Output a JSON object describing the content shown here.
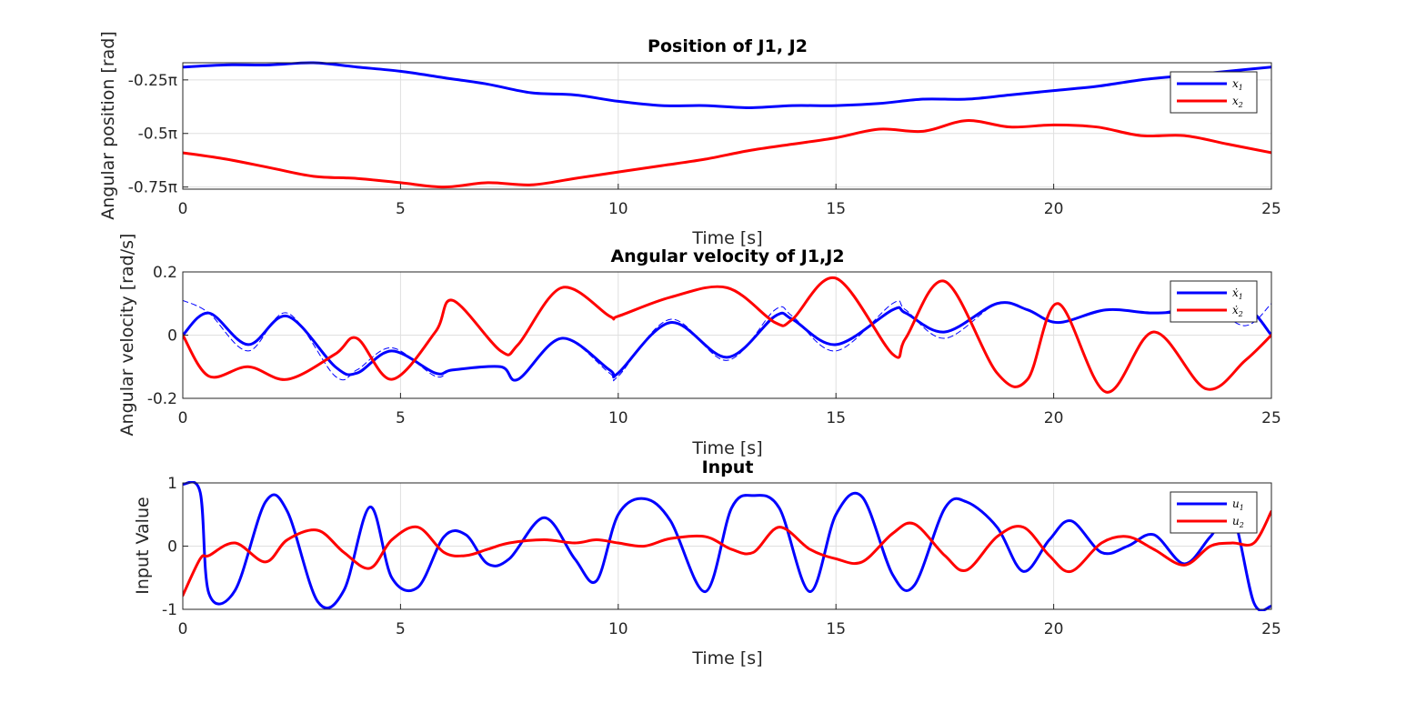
{
  "chart_data": [
    {
      "type": "line",
      "title": "Position of J1, J2",
      "xlabel": "Time [s]",
      "ylabel": "Angular position [rad]",
      "xlim": [
        0,
        25
      ],
      "ylim_pi_units": [
        -0.76,
        -0.17
      ],
      "xticks": [
        0,
        5,
        10,
        15,
        20,
        25
      ],
      "xtick_labels": [
        "0",
        "5",
        "10",
        "15",
        "20",
        "25"
      ],
      "yticks_pi_units": [
        -0.25,
        -0.5,
        -0.75
      ],
      "ytick_labels": [
        "-0.25π",
        "-0.5π",
        "-0.75π"
      ],
      "grid": true,
      "legend_position": "top-right",
      "legend": [
        {
          "main": "x",
          "sub": "1",
          "color": "#0000ff"
        },
        {
          "main": "x",
          "sub": "2",
          "color": "#ff0000"
        }
      ],
      "x": [
        0,
        1,
        2,
        3,
        4,
        5,
        6,
        7,
        8,
        9,
        10,
        11,
        12,
        13,
        14,
        15,
        16,
        17,
        18,
        19,
        20,
        21,
        22,
        23,
        24,
        25
      ],
      "series": [
        {
          "name": "x1",
          "color": "#0000ff",
          "width": 3,
          "values_pi_units": [
            -0.19,
            -0.18,
            -0.18,
            -0.17,
            -0.19,
            -0.21,
            -0.24,
            -0.27,
            -0.31,
            -0.32,
            -0.35,
            -0.37,
            -0.37,
            -0.38,
            -0.37,
            -0.37,
            -0.36,
            -0.34,
            -0.34,
            -0.32,
            -0.3,
            -0.28,
            -0.25,
            -0.23,
            -0.21,
            -0.19
          ]
        },
        {
          "name": "x2",
          "color": "#ff0000",
          "width": 3,
          "values_pi_units": [
            -0.59,
            -0.62,
            -0.66,
            -0.7,
            -0.71,
            -0.73,
            -0.75,
            -0.73,
            -0.74,
            -0.71,
            -0.68,
            -0.65,
            -0.62,
            -0.58,
            -0.55,
            -0.52,
            -0.48,
            -0.49,
            -0.44,
            -0.47,
            -0.46,
            -0.47,
            -0.51,
            -0.51,
            -0.55,
            -0.59
          ]
        }
      ]
    },
    {
      "type": "line",
      "title": "Angular velocity of J1,J2",
      "xlabel": "Time [s]",
      "ylabel": "Angular velocity [rad/s]",
      "xlim": [
        0,
        25
      ],
      "ylim": [
        -0.2,
        0.2
      ],
      "xticks": [
        0,
        5,
        10,
        15,
        20,
        25
      ],
      "xtick_labels": [
        "0",
        "5",
        "10",
        "15",
        "20",
        "25"
      ],
      "yticks": [
        0.2,
        0,
        -0.2
      ],
      "ytick_labels": [
        "0.2",
        "0",
        "-0.2"
      ],
      "grid": true,
      "legend_position": "top-right",
      "legend": [
        {
          "main": "ẋ",
          "sub": "1",
          "color": "#0000ff"
        },
        {
          "main": "ẋ",
          "sub": "2",
          "color": "#ff0000"
        }
      ],
      "x": [
        0,
        0.6,
        1.5,
        2.4,
        3.5,
        4.0,
        4.8,
        5.8,
        6.2,
        7.3,
        7.7,
        8.7,
        9.8,
        10.0,
        11.2,
        12.5,
        13.6,
        14.0,
        15.0,
        16.3,
        16.6,
        17.5,
        18.7,
        19.4,
        20.1,
        21.2,
        22.3,
        23.5,
        24.4,
        25.0
      ],
      "series": [
        {
          "name": "x1_dot",
          "color": "#0000ff",
          "width": 3,
          "values": [
            0.0,
            0.07,
            -0.03,
            0.06,
            -0.1,
            -0.12,
            -0.05,
            -0.12,
            -0.11,
            -0.1,
            -0.14,
            -0.01,
            -0.11,
            -0.12,
            0.04,
            -0.07,
            0.06,
            0.05,
            -0.03,
            0.08,
            0.07,
            0.01,
            0.1,
            0.08,
            0.04,
            0.08,
            0.07,
            0.08,
            0.09,
            0.0
          ]
        },
        {
          "name": "x1_dot_reference",
          "color": "#0000ff",
          "width": 1,
          "dashed": true,
          "values": [
            0.11,
            0.07,
            -0.05,
            0.07,
            -0.13,
            -0.11,
            -0.04,
            -0.13,
            -0.11,
            -0.1,
            -0.14,
            -0.01,
            -0.12,
            -0.13,
            0.05,
            -0.08,
            0.08,
            0.06,
            -0.05,
            0.1,
            0.08,
            -0.01,
            0.1,
            0.08,
            0.04,
            0.08,
            0.07,
            0.09,
            0.03,
            0.1
          ]
        },
        {
          "name": "x2_dot",
          "color": "#ff0000",
          "width": 3,
          "values": [
            0.0,
            -0.13,
            -0.1,
            -0.14,
            -0.06,
            -0.01,
            -0.14,
            0.01,
            0.11,
            -0.05,
            -0.03,
            0.15,
            0.06,
            0.06,
            0.12,
            0.15,
            0.04,
            0.05,
            0.18,
            -0.06,
            -0.01,
            0.17,
            -0.12,
            -0.14,
            0.1,
            -0.18,
            0.01,
            -0.17,
            -0.08,
            0.0
          ]
        }
      ]
    },
    {
      "type": "line",
      "title": "Input",
      "xlabel": "Time [s]",
      "ylabel": "Input Value",
      "xlim": [
        0,
        25
      ],
      "ylim": [
        -1,
        1
      ],
      "xticks": [
        0,
        5,
        10,
        15,
        20,
        25
      ],
      "xtick_labels": [
        "0",
        "5",
        "10",
        "15",
        "20",
        "25"
      ],
      "yticks": [
        1,
        0,
        -1
      ],
      "ytick_labels": [
        "1",
        "0",
        "-1"
      ],
      "grid": true,
      "legend_position": "top-right",
      "legend": [
        {
          "main": "u",
          "sub": "1",
          "color": "#0000ff"
        },
        {
          "main": "u",
          "sub": "2",
          "color": "#ff0000"
        }
      ],
      "x": [
        0,
        0.4,
        0.6,
        1.2,
        1.9,
        2.4,
        3.1,
        3.7,
        4.3,
        4.8,
        5.4,
        6.0,
        6.5,
        7.0,
        7.5,
        8.3,
        9.0,
        9.5,
        10.0,
        10.6,
        11.2,
        12.0,
        12.6,
        13.1,
        13.7,
        14.4,
        15.0,
        15.6,
        16.3,
        16.8,
        17.5,
        18.0,
        18.7,
        19.3,
        19.9,
        20.4,
        21.1,
        21.7,
        22.3,
        23.0,
        23.6,
        24.1,
        24.6,
        25.0
      ],
      "series": [
        {
          "name": "u1",
          "color": "#0000ff",
          "width": 3,
          "values": [
            0.98,
            0.85,
            -0.75,
            -0.7,
            0.7,
            0.55,
            -0.88,
            -0.7,
            0.62,
            -0.5,
            -0.65,
            0.15,
            0.18,
            -0.28,
            -0.2,
            0.45,
            -0.2,
            -0.55,
            0.5,
            0.75,
            0.4,
            -0.72,
            0.6,
            0.8,
            0.6,
            -0.72,
            0.5,
            0.78,
            -0.45,
            -0.62,
            0.6,
            0.7,
            0.3,
            -0.4,
            0.1,
            0.4,
            -0.1,
            0.0,
            0.18,
            -0.28,
            0.15,
            0.5,
            -0.9,
            -0.95
          ]
        },
        {
          "name": "u2",
          "color": "#ff0000",
          "width": 3,
          "values": [
            -0.78,
            -0.2,
            -0.15,
            0.05,
            -0.25,
            0.1,
            0.25,
            -0.1,
            -0.35,
            0.1,
            0.3,
            -0.1,
            -0.15,
            -0.05,
            0.05,
            0.1,
            0.05,
            0.1,
            0.05,
            0.0,
            0.12,
            0.15,
            -0.05,
            -0.1,
            0.3,
            -0.05,
            -0.2,
            -0.25,
            0.2,
            0.35,
            -0.15,
            -0.38,
            0.15,
            0.3,
            -0.15,
            -0.4,
            0.05,
            0.15,
            -0.05,
            -0.3,
            0.0,
            0.05,
            0.05,
            0.55
          ]
        }
      ]
    }
  ]
}
